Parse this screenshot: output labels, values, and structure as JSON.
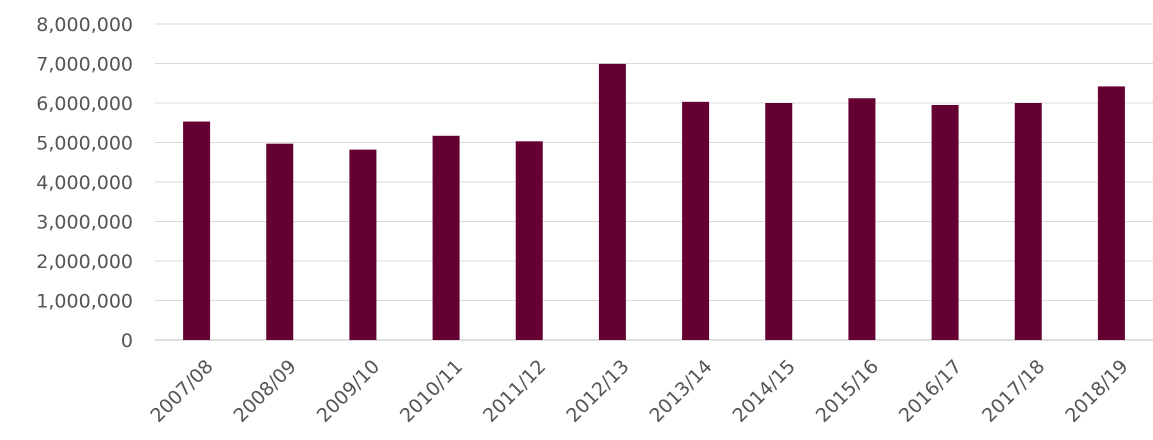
{
  "chart_data": {
    "type": "bar",
    "categories": [
      "2007/08",
      "2008/09",
      "2009/10",
      "2010/11",
      "2011/12",
      "2012/13",
      "2013/14",
      "2014/15",
      "2015/16",
      "2016/17",
      "2017/18",
      "2018/19"
    ],
    "series": [
      {
        "values": [
          5530000,
          4970000,
          4820000,
          5170000,
          5030000,
          6990000,
          6030000,
          6000000,
          6120000,
          5950000,
          6000000,
          6420000
        ]
      }
    ],
    "ylim": [
      0,
      8000000
    ],
    "yticks": [
      0,
      1000000,
      2000000,
      3000000,
      4000000,
      5000000,
      6000000,
      7000000,
      8000000
    ],
    "ytick_labels": [
      "0",
      "1,000,000",
      "2,000,000",
      "3,000,000",
      "4,000,000",
      "5,000,000",
      "6,000,000",
      "7,000,000",
      "8,000,000"
    ],
    "title": "",
    "xlabel": "",
    "ylabel": "",
    "grid": true,
    "legend": "none",
    "bar_color": "#650033",
    "grid_color": "#d9d9d9",
    "text_color": "#555555"
  }
}
